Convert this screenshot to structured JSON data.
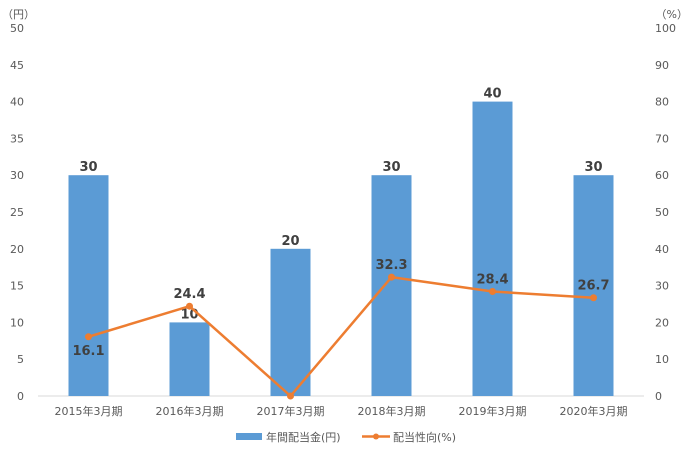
{
  "chart_data": {
    "type": "bar",
    "categories": [
      "2015年3月期",
      "2016年3月期",
      "2017年3月期",
      "2018年3月期",
      "2019年3月期",
      "2020年3月期"
    ],
    "series": [
      {
        "name": "年間配当金(円)",
        "type": "bar",
        "axis": "left",
        "color": "#5B9BD5",
        "values": [
          30,
          10,
          20,
          30,
          40,
          30
        ],
        "labels": [
          "30",
          "10",
          "20",
          "30",
          "40",
          "30"
        ]
      },
      {
        "name": "配当性向(%)",
        "type": "line",
        "axis": "right",
        "color": "#ED7D31",
        "values": [
          16.1,
          24.4,
          0,
          32.3,
          28.4,
          26.7
        ],
        "labels": [
          "16.1",
          "24.4",
          "",
          "32.3",
          "28.4",
          "26.7"
        ]
      }
    ],
    "y_left": {
      "unit_label": "（円）",
      "min": 0,
      "max": 50,
      "step": 5
    },
    "y_right": {
      "unit_label": "（%）",
      "min": 0,
      "max": 100,
      "step": 10
    },
    "legend": {
      "position": "bottom"
    },
    "grid": false
  }
}
